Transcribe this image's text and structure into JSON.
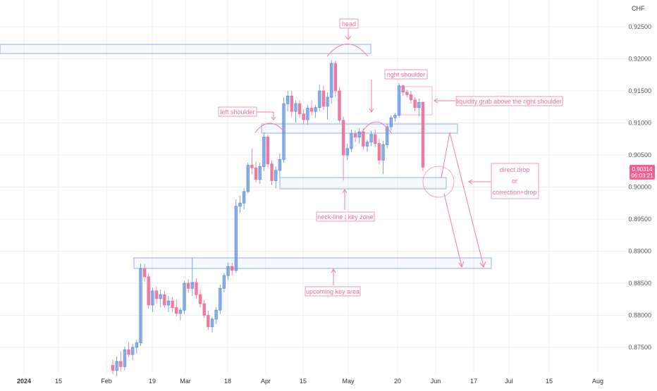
{
  "currency": "CHF",
  "price_tag": {
    "price": "0.90314",
    "timer": "06:03:21",
    "color": "#f0608f"
  },
  "colors": {
    "up": "#5b8fe0",
    "down": "#ef6f97",
    "zone": "#8fb3ec",
    "annotation": "#ef7fa3",
    "grid": "#eeeeee"
  },
  "annotations": {
    "head": "head",
    "right_shoulder": "right shoulder",
    "left_shoulder": "left shoulder",
    "liquidity": "liquidity grab above the right shoulder",
    "neckline": "neck-line | key zone",
    "upcoming": "upcoming key area",
    "scenario_1": "direct drop",
    "scenario_or": "or",
    "scenario_2": "correction+drop"
  },
  "chart_data": {
    "type": "candlestick",
    "y_ticks": [
      "0.92500",
      "0.92000",
      "0.91500",
      "0.91000",
      "0.90500",
      "0.90000",
      "0.89500",
      "0.89000",
      "0.88500",
      "0.88000",
      "0.87500"
    ],
    "x_ticks": [
      "2024",
      "15",
      "Feb",
      "19",
      "Mar",
      "18",
      "Apr",
      "15",
      "May",
      "20",
      "Jun",
      "17",
      "Jul",
      "15",
      "Aug"
    ],
    "ylim": [
      0.8718,
      0.9272
    ],
    "candles": [
      {
        "o": 0.8722,
        "h": 0.8731,
        "l": 0.8708,
        "c": 0.8714
      },
      {
        "o": 0.8714,
        "h": 0.8736,
        "l": 0.8705,
        "c": 0.8728
      },
      {
        "o": 0.8728,
        "h": 0.8744,
        "l": 0.8712,
        "c": 0.872
      },
      {
        "o": 0.872,
        "h": 0.8751,
        "l": 0.8714,
        "c": 0.8746
      },
      {
        "o": 0.8746,
        "h": 0.8758,
        "l": 0.8735,
        "c": 0.8739
      },
      {
        "o": 0.8739,
        "h": 0.8756,
        "l": 0.873,
        "c": 0.875
      },
      {
        "o": 0.875,
        "h": 0.8762,
        "l": 0.874,
        "c": 0.8757
      },
      {
        "o": 0.8757,
        "h": 0.8881,
        "l": 0.8752,
        "c": 0.8873
      },
      {
        "o": 0.8873,
        "h": 0.888,
        "l": 0.8852,
        "c": 0.886
      },
      {
        "o": 0.886,
        "h": 0.8866,
        "l": 0.881,
        "c": 0.8816
      },
      {
        "o": 0.8816,
        "h": 0.8843,
        "l": 0.8805,
        "c": 0.8838
      },
      {
        "o": 0.8838,
        "h": 0.8845,
        "l": 0.8818,
        "c": 0.8826
      },
      {
        "o": 0.8826,
        "h": 0.884,
        "l": 0.8812,
        "c": 0.8832
      },
      {
        "o": 0.8832,
        "h": 0.8838,
        "l": 0.8812,
        "c": 0.8816
      },
      {
        "o": 0.8816,
        "h": 0.883,
        "l": 0.8805,
        "c": 0.8822
      },
      {
        "o": 0.8822,
        "h": 0.8828,
        "l": 0.8805,
        "c": 0.8812
      },
      {
        "o": 0.8812,
        "h": 0.8825,
        "l": 0.8798,
        "c": 0.8803
      },
      {
        "o": 0.8803,
        "h": 0.8812,
        "l": 0.8792,
        "c": 0.8808
      },
      {
        "o": 0.8808,
        "h": 0.8854,
        "l": 0.8802,
        "c": 0.885
      },
      {
        "o": 0.885,
        "h": 0.8856,
        "l": 0.8835,
        "c": 0.8842
      },
      {
        "o": 0.8842,
        "h": 0.889,
        "l": 0.883,
        "c": 0.8851
      },
      {
        "o": 0.8851,
        "h": 0.8858,
        "l": 0.8826,
        "c": 0.8832
      },
      {
        "o": 0.8832,
        "h": 0.884,
        "l": 0.8812,
        "c": 0.8818
      },
      {
        "o": 0.8818,
        "h": 0.8824,
        "l": 0.8796,
        "c": 0.88
      },
      {
        "o": 0.88,
        "h": 0.8807,
        "l": 0.8777,
        "c": 0.8782
      },
      {
        "o": 0.8782,
        "h": 0.8798,
        "l": 0.8773,
        "c": 0.8794
      },
      {
        "o": 0.8794,
        "h": 0.8813,
        "l": 0.8786,
        "c": 0.8808
      },
      {
        "o": 0.8808,
        "h": 0.8848,
        "l": 0.8802,
        "c": 0.8842
      },
      {
        "o": 0.8842,
        "h": 0.8866,
        "l": 0.8836,
        "c": 0.8862
      },
      {
        "o": 0.8862,
        "h": 0.8882,
        "l": 0.8855,
        "c": 0.8876
      },
      {
        "o": 0.8876,
        "h": 0.8882,
        "l": 0.8862,
        "c": 0.887
      },
      {
        "o": 0.887,
        "h": 0.8981,
        "l": 0.8866,
        "c": 0.897
      },
      {
        "o": 0.897,
        "h": 0.8986,
        "l": 0.896,
        "c": 0.8975
      },
      {
        "o": 0.8975,
        "h": 0.8998,
        "l": 0.8965,
        "c": 0.8993
      },
      {
        "o": 0.8993,
        "h": 0.9038,
        "l": 0.899,
        "c": 0.9034
      },
      {
        "o": 0.9034,
        "h": 0.906,
        "l": 0.902,
        "c": 0.903
      },
      {
        "o": 0.903,
        "h": 0.904,
        "l": 0.9007,
        "c": 0.9012
      },
      {
        "o": 0.9012,
        "h": 0.9038,
        "l": 0.9005,
        "c": 0.9032
      },
      {
        "o": 0.9032,
        "h": 0.9085,
        "l": 0.9025,
        "c": 0.9078
      },
      {
        "o": 0.9078,
        "h": 0.9082,
        "l": 0.903,
        "c": 0.9036
      },
      {
        "o": 0.9036,
        "h": 0.9042,
        "l": 0.9003,
        "c": 0.901
      },
      {
        "o": 0.901,
        "h": 0.9032,
        "l": 0.8998,
        "c": 0.9026
      },
      {
        "o": 0.9026,
        "h": 0.9052,
        "l": 0.9015,
        "c": 0.9043
      },
      {
        "o": 0.9043,
        "h": 0.914,
        "l": 0.9038,
        "c": 0.913
      },
      {
        "o": 0.913,
        "h": 0.915,
        "l": 0.9118,
        "c": 0.9142
      },
      {
        "o": 0.9142,
        "h": 0.915,
        "l": 0.911,
        "c": 0.9118
      },
      {
        "o": 0.9118,
        "h": 0.9135,
        "l": 0.91,
        "c": 0.913
      },
      {
        "o": 0.913,
        "h": 0.9136,
        "l": 0.9108,
        "c": 0.9114
      },
      {
        "o": 0.9114,
        "h": 0.9122,
        "l": 0.9098,
        "c": 0.9105
      },
      {
        "o": 0.9105,
        "h": 0.9128,
        "l": 0.9097,
        "c": 0.9123
      },
      {
        "o": 0.9123,
        "h": 0.9135,
        "l": 0.9112,
        "c": 0.9118
      },
      {
        "o": 0.9118,
        "h": 0.9128,
        "l": 0.9108,
        "c": 0.9124
      },
      {
        "o": 0.9124,
        "h": 0.916,
        "l": 0.9118,
        "c": 0.915
      },
      {
        "o": 0.915,
        "h": 0.9158,
        "l": 0.912,
        "c": 0.9126
      },
      {
        "o": 0.9126,
        "h": 0.9148,
        "l": 0.9105,
        "c": 0.914
      },
      {
        "o": 0.914,
        "h": 0.9198,
        "l": 0.913,
        "c": 0.9193
      },
      {
        "o": 0.9193,
        "h": 0.9197,
        "l": 0.914,
        "c": 0.915
      },
      {
        "o": 0.915,
        "h": 0.9156,
        "l": 0.91,
        "c": 0.9104
      },
      {
        "o": 0.9104,
        "h": 0.911,
        "l": 0.901,
        "c": 0.905
      },
      {
        "o": 0.905,
        "h": 0.9068,
        "l": 0.9042,
        "c": 0.906
      },
      {
        "o": 0.906,
        "h": 0.909,
        "l": 0.9055,
        "c": 0.9083
      },
      {
        "o": 0.9083,
        "h": 0.9088,
        "l": 0.907,
        "c": 0.9078
      },
      {
        "o": 0.9078,
        "h": 0.9092,
        "l": 0.9068,
        "c": 0.9086
      },
      {
        "o": 0.9086,
        "h": 0.9092,
        "l": 0.9058,
        "c": 0.9064
      },
      {
        "o": 0.9064,
        "h": 0.9074,
        "l": 0.9055,
        "c": 0.907
      },
      {
        "o": 0.907,
        "h": 0.9088,
        "l": 0.9064,
        "c": 0.9082
      },
      {
        "o": 0.9082,
        "h": 0.909,
        "l": 0.9062,
        "c": 0.9068
      },
      {
        "o": 0.9068,
        "h": 0.9075,
        "l": 0.9035,
        "c": 0.9042
      },
      {
        "o": 0.9042,
        "h": 0.9072,
        "l": 0.902,
        "c": 0.9066
      },
      {
        "o": 0.9066,
        "h": 0.9098,
        "l": 0.906,
        "c": 0.9094
      },
      {
        "o": 0.9094,
        "h": 0.9112,
        "l": 0.9088,
        "c": 0.9108
      },
      {
        "o": 0.9108,
        "h": 0.9116,
        "l": 0.9102,
        "c": 0.9112
      },
      {
        "o": 0.9112,
        "h": 0.9162,
        "l": 0.9108,
        "c": 0.9158
      },
      {
        "o": 0.9158,
        "h": 0.916,
        "l": 0.9142,
        "c": 0.9148
      },
      {
        "o": 0.9148,
        "h": 0.9152,
        "l": 0.914,
        "c": 0.9144
      },
      {
        "o": 0.9144,
        "h": 0.915,
        "l": 0.913,
        "c": 0.9136
      },
      {
        "o": 0.9136,
        "h": 0.914,
        "l": 0.9118,
        "c": 0.9124
      },
      {
        "o": 0.9124,
        "h": 0.9138,
        "l": 0.911,
        "c": 0.9132
      },
      {
        "o": 0.9132,
        "h": 0.9134,
        "l": 0.9025,
        "c": 0.9031
      }
    ]
  }
}
